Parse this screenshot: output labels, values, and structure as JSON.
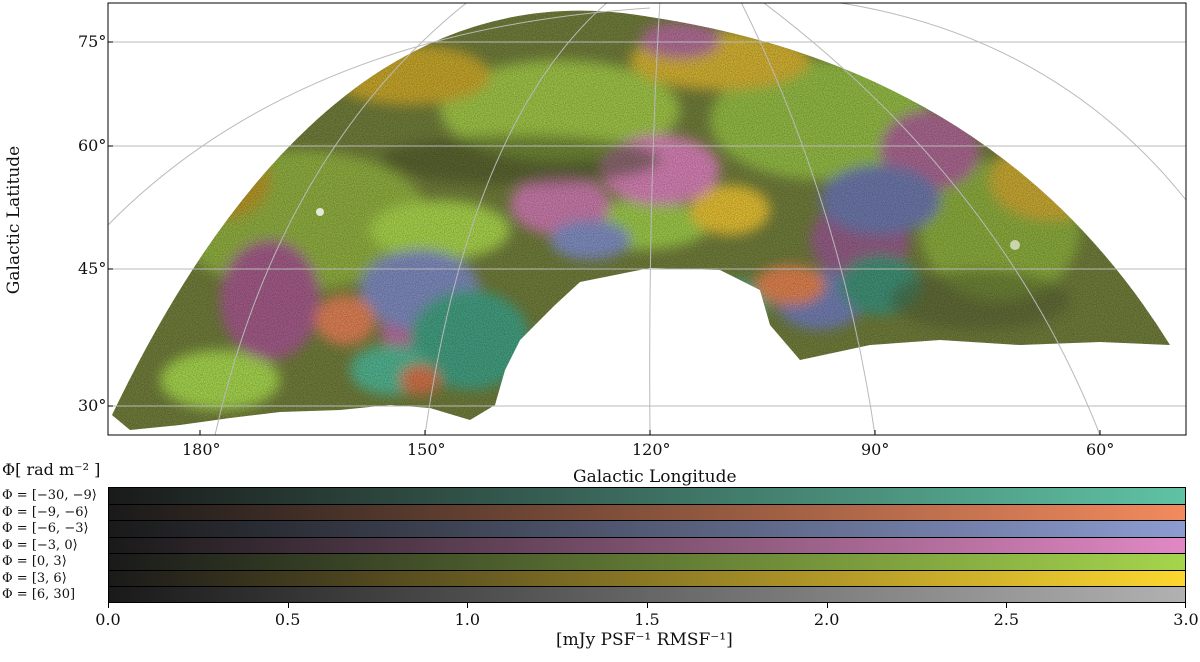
{
  "map": {
    "y_axis_label": "Galactic Latitude",
    "x_axis_label": "Galactic Longitude",
    "lat_ticks": [
      "75°",
      "60°",
      "45°",
      "30°"
    ],
    "lon_ticks": [
      "180°",
      "150°",
      "120°",
      "90°",
      "60°"
    ]
  },
  "colorbar": {
    "title": "Φ[ rad m⁻² ]",
    "unit_label": "[mJy PSF⁻¹ RMSF⁻¹]",
    "ticks": [
      "0.0",
      "0.5",
      "1.0",
      "1.5",
      "2.0",
      "2.5",
      "3.0"
    ],
    "range": [
      0.0,
      3.0
    ],
    "bins": [
      {
        "label": "Φ = [−30, −9⟩",
        "color": "#5fc2a4"
      },
      {
        "label": "Φ = [−9, −6⟩",
        "color": "#f28a5e"
      },
      {
        "label": "Φ = [−6, −3⟩",
        "color": "#8c9bd0"
      },
      {
        "label": "Φ = [−3, 0⟩",
        "color": "#e188c4"
      },
      {
        "label": "Φ = [0, 3⟩",
        "color": "#a5d54d"
      },
      {
        "label": "Φ = [3, 6⟩",
        "color": "#fcd72f"
      },
      {
        "label": "Φ = [6, 30]",
        "color": "#b1b1b1"
      }
    ]
  }
}
